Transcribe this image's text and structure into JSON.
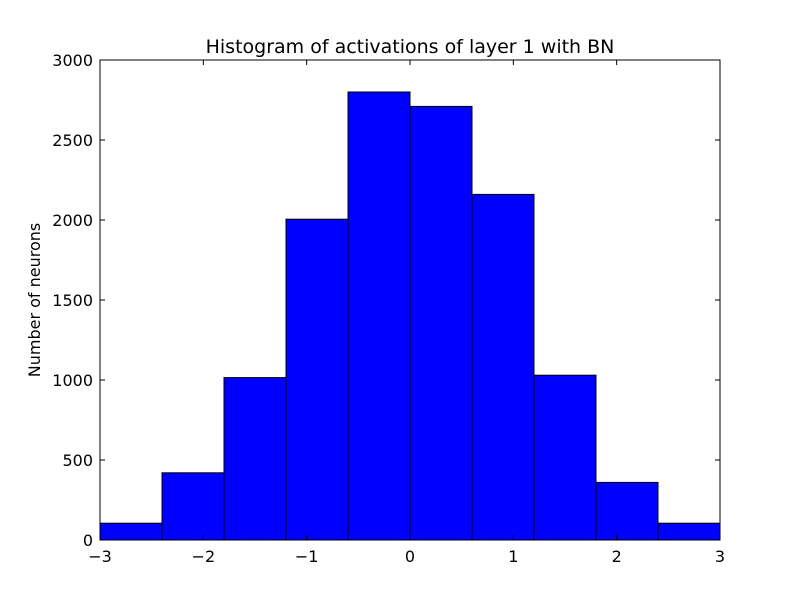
{
  "chart_data": {
    "type": "bar",
    "title": "Histogram of activations of layer 1  with BN",
    "xlabel": "",
    "ylabel": "Number of neurons",
    "bin_edges": [
      -3.0,
      -2.4,
      -1.8,
      -1.2,
      -0.6,
      0.0,
      0.6,
      1.2,
      1.8,
      2.4,
      3.0
    ],
    "values": [
      105,
      420,
      1015,
      2005,
      2800,
      2710,
      2160,
      1030,
      360,
      105
    ],
    "xlim": [
      -3,
      3
    ],
    "ylim": [
      0,
      3000
    ],
    "x_ticks": [
      -3,
      -2,
      -1,
      0,
      1,
      2,
      3
    ],
    "x_tick_labels": [
      "−3",
      "−2",
      "−1",
      "0",
      "1",
      "2",
      "3"
    ],
    "y_ticks": [
      0,
      500,
      1000,
      1500,
      2000,
      2500,
      3000
    ],
    "y_tick_labels": [
      "0",
      "500",
      "1000",
      "1500",
      "2000",
      "2500",
      "3000"
    ],
    "bar_color": "#0000ff",
    "edge_color": "#000000",
    "grid": false,
    "legend": "none"
  }
}
